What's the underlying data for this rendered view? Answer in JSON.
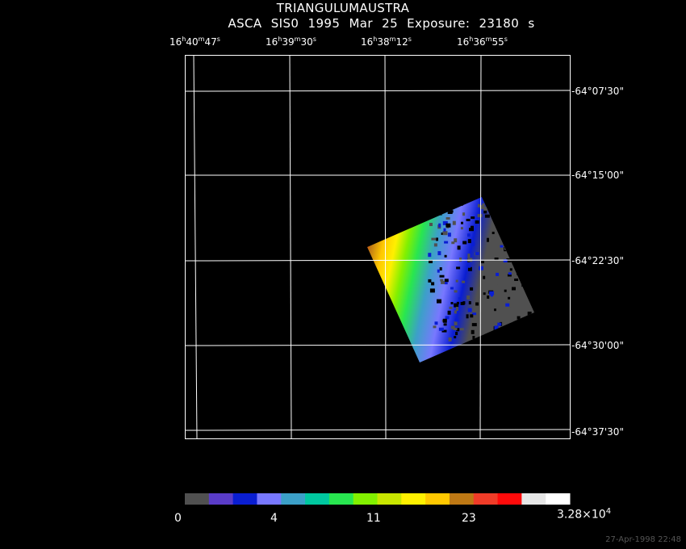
{
  "header": {
    "object_name": "TRIANGULUMAUSTRA",
    "subtitle": "ASCA SIS0    1995 Mar 25    Exposure: 23180 s"
  },
  "ra_labels": [
    {
      "h": "16",
      "m": "40",
      "s": "47"
    },
    {
      "h": "16",
      "m": "39",
      "s": "30"
    },
    {
      "h": "16",
      "m": "38",
      "s": "12"
    },
    {
      "h": "16",
      "m": "36",
      "s": "55"
    }
  ],
  "dec_labels": [
    "-64°07'30\"",
    "-64°15'00\"",
    "-64°22'30\"",
    "-64°30'00\"",
    "-64°37'30\""
  ],
  "colorbar": {
    "labels": [
      "0",
      "4",
      "11",
      "23",
      "3.28×10"
    ],
    "max_exponent": "4",
    "colors": [
      "#505050",
      "#5a3cc8",
      "#0a1ed2",
      "#7878ff",
      "#3ca0c8",
      "#00c8a0",
      "#28e650",
      "#82f000",
      "#c8e600",
      "#fff000",
      "#ffc800",
      "#be7814",
      "#f03c28",
      "#ff0a0a",
      "#e6e6e6",
      "#ffffff"
    ]
  },
  "footer": {
    "timestamp": "27-Apr-1998 22:48"
  }
}
